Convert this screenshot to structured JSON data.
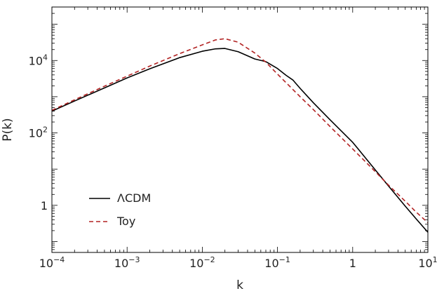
{
  "chart_data": {
    "type": "line",
    "title": "",
    "xlabel": "k",
    "ylabel": "P(k)",
    "xscale": "log",
    "yscale": "log",
    "xlim": [
      0.0001,
      10
    ],
    "ylim": [
      0.05,
      300000
    ],
    "grid": false,
    "legend_position": "bottom-left",
    "x_ticks": [
      {
        "value": 0.0001,
        "base": "10",
        "exp": "−4"
      },
      {
        "value": 0.001,
        "base": "10",
        "exp": "−3"
      },
      {
        "value": 0.01,
        "base": "10",
        "exp": "−2"
      },
      {
        "value": 0.1,
        "base": "10",
        "exp": "−1"
      },
      {
        "value": 1,
        "base": "1",
        "exp": ""
      },
      {
        "value": 10,
        "base": "10",
        "exp": "1"
      }
    ],
    "y_ticks": [
      {
        "value": 1,
        "base": "1",
        "exp": ""
      },
      {
        "value": 100,
        "base": "10",
        "exp": "2"
      },
      {
        "value": 10000,
        "base": "10",
        "exp": "4"
      }
    ],
    "series": [
      {
        "name": "ΛCDM",
        "color": "#000000",
        "style": "solid",
        "points": [
          [
            0.0001,
            400
          ],
          [
            0.0002,
            760
          ],
          [
            0.0005,
            1750
          ],
          [
            0.001,
            3300
          ],
          [
            0.002,
            5900
          ],
          [
            0.005,
            12000
          ],
          [
            0.01,
            18000
          ],
          [
            0.015,
            21000
          ],
          [
            0.02,
            21500
          ],
          [
            0.03,
            17500
          ],
          [
            0.05,
            11000
          ],
          [
            0.07,
            9300
          ],
          [
            0.1,
            6000
          ],
          [
            0.13,
            3900
          ],
          [
            0.16,
            2900
          ],
          [
            0.2,
            1700
          ],
          [
            0.3,
            680
          ],
          [
            0.5,
            230
          ],
          [
            1,
            55
          ],
          [
            2,
            9.5
          ],
          [
            3,
            3.4
          ],
          [
            5,
            0.95
          ],
          [
            7,
            0.42
          ],
          [
            10,
            0.18
          ]
        ]
      },
      {
        "name": "Toy",
        "color": "#b22222",
        "style": "dashed",
        "points": [
          [
            0.0001,
            420
          ],
          [
            0.0002,
            820
          ],
          [
            0.0005,
            1950
          ],
          [
            0.001,
            3700
          ],
          [
            0.002,
            7000
          ],
          [
            0.005,
            15500
          ],
          [
            0.01,
            27000
          ],
          [
            0.015,
            37000
          ],
          [
            0.02,
            40000
          ],
          [
            0.03,
            32000
          ],
          [
            0.05,
            16000
          ],
          [
            0.07,
            9000
          ],
          [
            0.1,
            4200
          ],
          [
            0.2,
            1000
          ],
          [
            0.3,
            440
          ],
          [
            0.5,
            150
          ],
          [
            1,
            36
          ],
          [
            2,
            8.5
          ],
          [
            3,
            3.6
          ],
          [
            5,
            1.3
          ],
          [
            7,
            0.65
          ],
          [
            10,
            0.33
          ]
        ]
      }
    ]
  }
}
